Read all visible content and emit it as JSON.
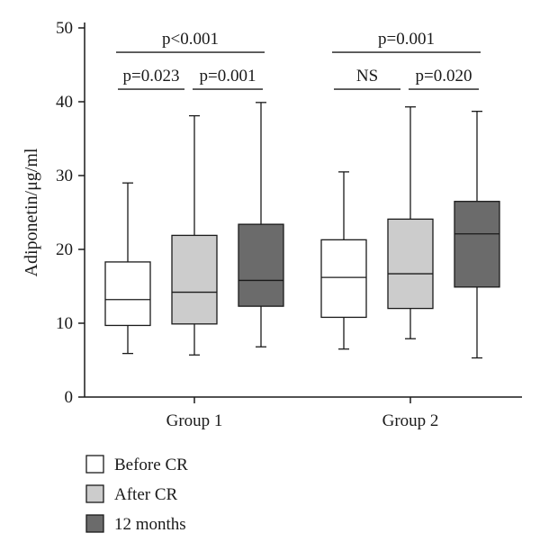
{
  "chart_data": {
    "type": "box",
    "ylabel": "Adiponetin/μg/ml",
    "ylim": [
      0,
      50
    ],
    "yticks": [
      "0",
      "10",
      "20",
      "30",
      "40",
      "50"
    ],
    "categories": [
      "Group 1",
      "Group 2"
    ],
    "series": [
      {
        "name": "Before CR",
        "color": "#ffffff",
        "boxes": [
          {
            "min": 5.9,
            "q1": 9.7,
            "median": 13.2,
            "q3": 18.3,
            "max": 29.0
          },
          {
            "min": 6.5,
            "q1": 10.8,
            "median": 16.2,
            "q3": 21.3,
            "max": 30.5
          }
        ]
      },
      {
        "name": "After CR",
        "color": "#cccccc",
        "boxes": [
          {
            "min": 5.7,
            "q1": 9.9,
            "median": 14.2,
            "q3": 21.9,
            "max": 38.1
          },
          {
            "min": 7.9,
            "q1": 12.0,
            "median": 16.7,
            "q3": 24.1,
            "max": 39.3
          }
        ]
      },
      {
        "name": "12 months",
        "color": "#6b6b6b",
        "boxes": [
          {
            "min": 6.8,
            "q1": 12.3,
            "median": 15.8,
            "q3": 23.4,
            "max": 39.9
          },
          {
            "min": 5.3,
            "q1": 14.9,
            "median": 22.1,
            "q3": 26.5,
            "max": 38.7
          }
        ]
      }
    ],
    "annotations": [
      {
        "text": "p<0.001",
        "group": 0,
        "from": 0,
        "to": 2,
        "y": 46.7
      },
      {
        "text": "p=0.023",
        "group": 0,
        "from": 0,
        "to": 1,
        "y": 41.7
      },
      {
        "text": "p=0.001",
        "group": 0,
        "from": 1,
        "to": 2,
        "y": 41.7
      },
      {
        "text": "p=0.001",
        "group": 1,
        "from": 0,
        "to": 2,
        "y": 46.7
      },
      {
        "text": "NS",
        "group": 1,
        "from": 0,
        "to": 1,
        "y": 41.7
      },
      {
        "text": "p=0.020",
        "group": 1,
        "from": 1,
        "to": 2,
        "y": 41.7
      }
    ],
    "legend": {
      "position": "bottom-left",
      "items": [
        "Before CR",
        "After CR",
        "12 months"
      ]
    },
    "grid": false
  }
}
